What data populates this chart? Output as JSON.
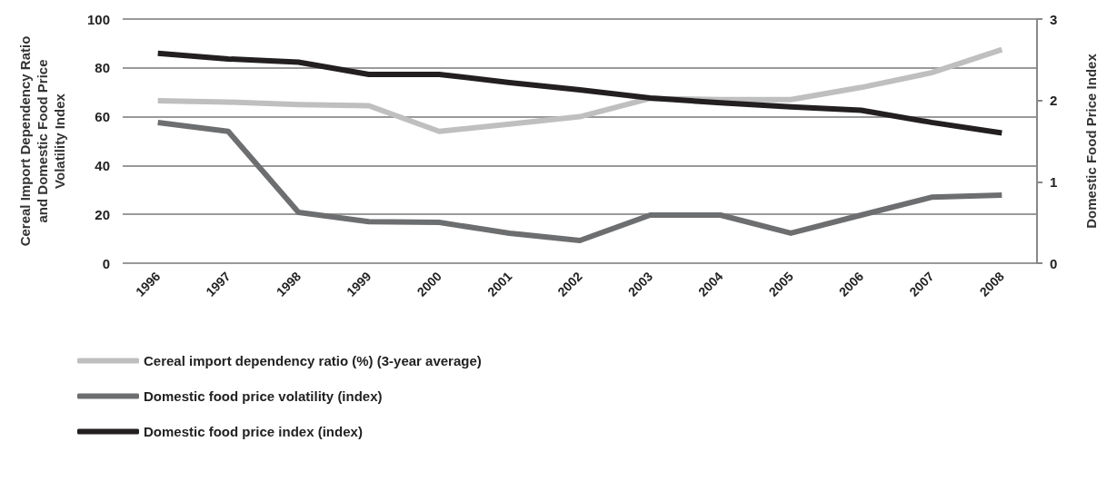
{
  "chart_data": {
    "type": "line",
    "ylabel": "Cereal Import Dependency Ratio and Domestic Food Price Volatility Index",
    "y2label": "Domestic Food Price Index",
    "categories": [
      "1996",
      "1997",
      "1998",
      "1999",
      "2000",
      "2001",
      "2002",
      "2003",
      "2004",
      "2005",
      "2006",
      "2007",
      "2008"
    ],
    "series": [
      {
        "name": "Cereal import dependency ratio (%) (3-year average)",
        "color": "#bfbfbf",
        "values": [
          66.5,
          66,
          65,
          64.5,
          54,
          57,
          60,
          67.5,
          67,
          67,
          72,
          78,
          87.5
        ]
      },
      {
        "name": "Domestic food price volatility (index)",
        "color": "#6d6e70",
        "values": [
          57.6,
          54,
          20.8,
          17,
          16.7,
          12.3,
          9.3,
          19.7,
          19.7,
          12.3,
          19.7,
          27,
          27.9
        ]
      },
      {
        "name": "Domestic food price index (index)",
        "color": "#231f20",
        "axis": "y2",
        "values": [
          2.58,
          2.51,
          2.47,
          2.32,
          2.32,
          2.22,
          2.13,
          2.03,
          1.97,
          1.92,
          1.88,
          1.73,
          1.6
        ]
      }
    ],
    "ylim": [
      0,
      100
    ],
    "yticks": [
      0,
      20,
      40,
      60,
      80,
      100
    ],
    "y2lim": [
      0,
      3
    ],
    "y2ticks": [
      0,
      1,
      2,
      3
    ],
    "grid": "y",
    "legend": "bottom",
    "marker": "none",
    "line_style": "solid"
  }
}
